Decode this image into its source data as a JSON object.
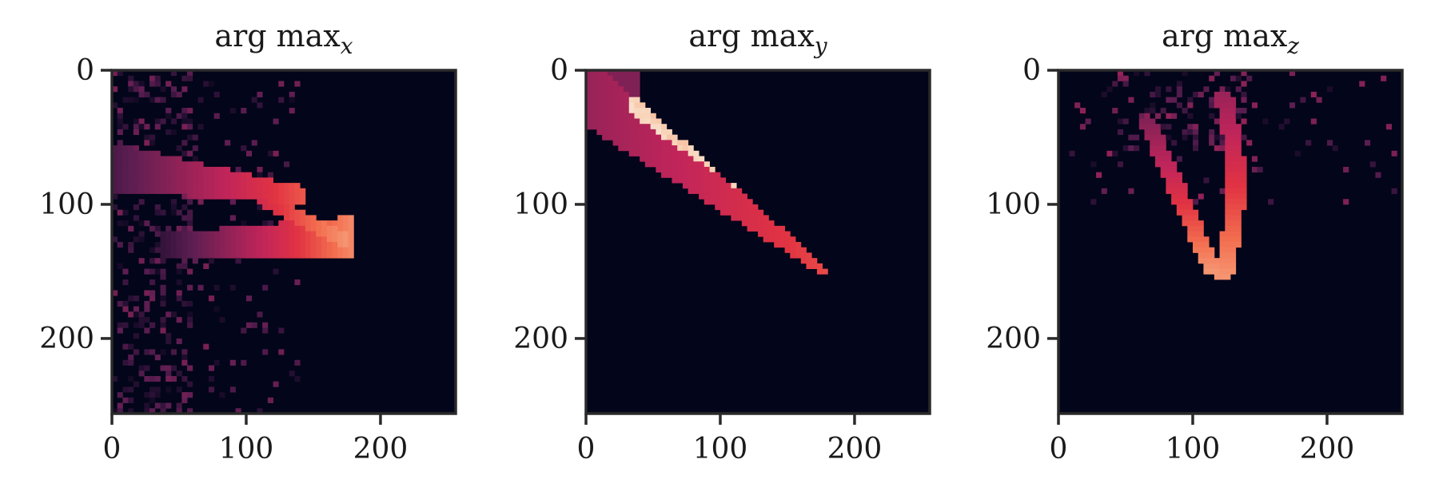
{
  "figure": {
    "background": "#ffffff",
    "colormap": "rocket",
    "colormap_stops": [
      "#03051a",
      "#2b1136",
      "#5c1e51",
      "#8f2257",
      "#c1255a",
      "#e13342",
      "#f36e4f",
      "#f6a37e",
      "#f8d3b8",
      "#faebdd"
    ]
  },
  "chart_data": [
    {
      "type": "heatmap",
      "title_base": "arg max",
      "title_subscript": "x",
      "xlim": [
        0,
        256
      ],
      "ylim": [
        256,
        0
      ],
      "xticks": [
        0,
        100,
        200
      ],
      "yticks": [
        0,
        100,
        200
      ],
      "grid_size": 64,
      "background_value": 0.0,
      "regions": [
        {
          "shape": "band",
          "x": [
            0,
            140
          ],
          "y": [
            55,
            100
          ],
          "value": [
            0.2,
            0.55
          ]
        },
        {
          "shape": "band",
          "x": [
            40,
            180
          ],
          "y": [
            115,
            145
          ],
          "value": [
            0.15,
            0.7
          ]
        },
        {
          "shape": "scatter",
          "x": [
            0,
            140
          ],
          "y": [
            0,
            256
          ],
          "value": [
            0.05,
            0.4
          ]
        }
      ]
    },
    {
      "type": "heatmap",
      "title_base": "arg max",
      "title_subscript": "y",
      "xlim": [
        0,
        256
      ],
      "ylim": [
        256,
        0
      ],
      "xticks": [
        0,
        100,
        200
      ],
      "yticks": [
        0,
        100,
        200
      ],
      "grid_size": 64,
      "background_value": 0.0,
      "regions": [
        {
          "shape": "diagonal",
          "x": [
            0,
            180
          ],
          "y": [
            0,
            155
          ],
          "value": [
            0.4,
            0.95
          ]
        }
      ]
    },
    {
      "type": "heatmap",
      "title_base": "arg max",
      "title_subscript": "z",
      "xlim": [
        0,
        256
      ],
      "ylim": [
        256,
        0
      ],
      "xticks": [
        0,
        100,
        200
      ],
      "yticks": [
        0,
        100,
        200
      ],
      "grid_size": 64,
      "background_value": 0.0,
      "regions": [
        {
          "shape": "v-curve",
          "x": [
            60,
            145
          ],
          "y": [
            10,
            160
          ],
          "value": [
            0.25,
            0.8
          ]
        },
        {
          "shape": "scatter",
          "x": [
            0,
            256
          ],
          "y": [
            0,
            100
          ],
          "value": [
            0.05,
            0.35
          ]
        }
      ]
    }
  ]
}
